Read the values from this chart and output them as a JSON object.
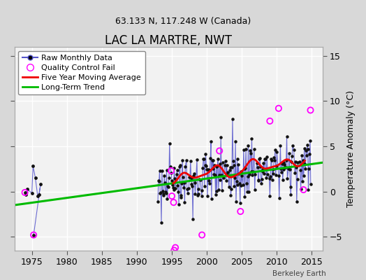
{
  "title": "LAC LA MARTRE, NWT",
  "subtitle": "63.133 N, 117.248 W (Canada)",
  "ylabel_right": "Temperature Anomaly (°C)",
  "watermark": "Berkeley Earth",
  "xlim": [
    1972.5,
    2016.5
  ],
  "ylim": [
    -6.5,
    16
  ],
  "yticks": [
    -5,
    0,
    5,
    10,
    15
  ],
  "xticks": [
    1975,
    1980,
    1985,
    1990,
    1995,
    2000,
    2005,
    2010,
    2015
  ],
  "background_color": "#d8d8d8",
  "plot_bg_color": "#f2f2f2",
  "grid_color": "#ffffff",
  "line_color_raw": "#5555cc",
  "dot_color": "#111111",
  "qc_color": "#ff00ff",
  "ma_color": "#ee0000",
  "trend_color": "#00bb00",
  "trend_x0": 1972.5,
  "trend_y0": -1.5,
  "trend_x1": 2016.5,
  "trend_y1": 3.2,
  "title_fontsize": 12,
  "subtitle_fontsize": 9,
  "legend_fontsize": 8,
  "axis_fontsize": 9
}
